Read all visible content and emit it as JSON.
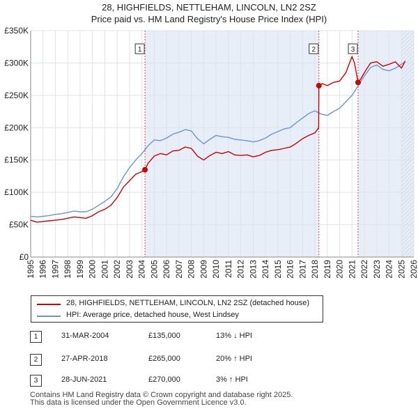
{
  "title_line1": "28, HIGHFIELDS, NETTLEHAM, LINCOLN, LN2 2SZ",
  "title_line2": "Price paid vs. HM Land Registry's House Price Index (HPI)",
  "colors": {
    "property": "#cc0000",
    "hpi": "#6a96cc",
    "shade": "#e8eef8",
    "vline": "#dd4444",
    "grid": "#dde3ec",
    "hatch": "#aab6c8"
  },
  "legend": {
    "property_label": "28, HIGHFIELDS, NETTLEHAM, LINCOLN, LN2 2SZ (detached house)",
    "hpi_label": "HPI: Average price, detached house, West Lindsey"
  },
  "sales": [
    {
      "num": "1",
      "date": "31-MAR-2004",
      "price": "£135,000",
      "hpi": "13% ↓ HPI"
    },
    {
      "num": "2",
      "date": "27-APR-2018",
      "price": "£265,000",
      "hpi": "20% ↑ HPI"
    },
    {
      "num": "3",
      "date": "28-JUN-2021",
      "price": "£270,000",
      "hpi": "3% ↑ HPI"
    }
  ],
  "footer": {
    "line1": "Contains HM Land Registry data © Crown copyright and database right 2025.",
    "line2": "This data is licensed under the Open Government Licence v3.0."
  },
  "chart_data": {
    "type": "line",
    "title": "Price paid vs. HM Land Registry's House Price Index (HPI)",
    "xlabel": "",
    "ylabel": "",
    "xlim": [
      1995,
      2026
    ],
    "ylim": [
      0,
      350000
    ],
    "y_ticks": [
      0,
      50000,
      100000,
      150000,
      200000,
      250000,
      300000,
      350000
    ],
    "y_tick_labels": [
      "£0",
      "£50K",
      "£100K",
      "£150K",
      "£200K",
      "£250K",
      "£300K",
      "£350K"
    ],
    "x_ticks": [
      1995,
      1996,
      1997,
      1998,
      1999,
      2000,
      2001,
      2002,
      2003,
      2004,
      2005,
      2006,
      2007,
      2008,
      2009,
      2010,
      2011,
      2012,
      2013,
      2014,
      2015,
      2016,
      2017,
      2018,
      2019,
      2020,
      2021,
      2022,
      2023,
      2024,
      2025,
      2026
    ],
    "x_tick_labels": [
      "1995",
      "1996",
      "1997",
      "1998",
      "1999",
      "2000",
      "2001",
      "2002",
      "2003",
      "2004",
      "2005",
      "2006",
      "2007",
      "2008",
      "2009",
      "2010",
      "2011",
      "2012",
      "2013",
      "2014",
      "2015",
      "2016",
      "2017",
      "2018",
      "2019",
      "2020",
      "2021",
      "2022",
      "2023",
      "2024",
      "2025",
      "2026"
    ],
    "grid": true,
    "forecast_hatch_from": 2025.0,
    "shaded_periods": [
      [
        2004.25,
        2018.32
      ],
      [
        2021.49,
        2026.0
      ]
    ],
    "series": [
      {
        "name": "28, HIGHFIELDS, NETTLEHAM, LINCOLN, LN2 2SZ (detached house)",
        "color": "#cc0000",
        "x": [
          1995.0,
          1995.5,
          1996.0,
          1996.5,
          1997.0,
          1997.5,
          1998.0,
          1998.5,
          1999.0,
          1999.5,
          2000.0,
          2000.5,
          2001.0,
          2001.5,
          2002.0,
          2002.5,
          2003.0,
          2003.5,
          2004.0,
          2004.25,
          2004.5,
          2005.0,
          2005.5,
          2006.0,
          2006.5,
          2007.0,
          2007.5,
          2008.0,
          2008.5,
          2009.0,
          2009.5,
          2010.0,
          2010.5,
          2011.0,
          2011.5,
          2012.0,
          2012.5,
          2013.0,
          2013.5,
          2014.0,
          2014.5,
          2015.0,
          2015.5,
          2016.0,
          2016.5,
          2017.0,
          2017.5,
          2018.0,
          2018.3,
          2018.32,
          2018.6,
          2019.0,
          2019.5,
          2020.0,
          2020.5,
          2021.0,
          2021.2,
          2021.49,
          2021.7,
          2022.0,
          2022.5,
          2023.0,
          2023.5,
          2024.0,
          2024.5,
          2025.0,
          2025.3
        ],
        "values": [
          57000,
          54000,
          55000,
          56000,
          57000,
          58000,
          60000,
          62000,
          61000,
          60000,
          64000,
          70000,
          74000,
          80000,
          92000,
          108000,
          118000,
          128000,
          132000,
          135000,
          145000,
          156000,
          160000,
          158000,
          164000,
          165000,
          170000,
          168000,
          156000,
          150000,
          157000,
          162000,
          160000,
          163000,
          158000,
          157000,
          158000,
          155000,
          157000,
          162000,
          165000,
          166000,
          168000,
          170000,
          176000,
          183000,
          188000,
          192000,
          200000,
          265000,
          268000,
          265000,
          270000,
          272000,
          285000,
          310000,
          300000,
          270000,
          275000,
          285000,
          300000,
          302000,
          295000,
          298000,
          302000,
          292000,
          303000
        ]
      },
      {
        "name": "HPI: Average price, detached house, West Lindsey",
        "color": "#6a96cc",
        "x": [
          1995.0,
          1995.5,
          1996.0,
          1996.5,
          1997.0,
          1997.5,
          1998.0,
          1998.5,
          1999.0,
          1999.5,
          2000.0,
          2000.5,
          2001.0,
          2001.5,
          2002.0,
          2002.5,
          2003.0,
          2003.5,
          2004.0,
          2004.5,
          2005.0,
          2005.5,
          2006.0,
          2006.5,
          2007.0,
          2007.5,
          2008.0,
          2008.5,
          2009.0,
          2009.5,
          2010.0,
          2010.5,
          2011.0,
          2011.5,
          2012.0,
          2012.5,
          2013.0,
          2013.5,
          2014.0,
          2014.5,
          2015.0,
          2015.5,
          2016.0,
          2016.5,
          2017.0,
          2017.5,
          2018.0,
          2018.5,
          2019.0,
          2019.5,
          2020.0,
          2020.5,
          2021.0,
          2021.5,
          2022.0,
          2022.5,
          2023.0,
          2023.5,
          2024.0,
          2024.5,
          2025.0,
          2025.3
        ],
        "values": [
          63000,
          62000,
          63000,
          64000,
          66000,
          67000,
          69000,
          71000,
          70000,
          70000,
          74000,
          80000,
          86000,
          93000,
          106000,
          124000,
          138000,
          150000,
          160000,
          172000,
          181000,
          180000,
          184000,
          190000,
          193000,
          197000,
          195000,
          183000,
          175000,
          182000,
          188000,
          186000,
          185000,
          182000,
          181000,
          180000,
          178000,
          180000,
          184000,
          190000,
          194000,
          198000,
          200000,
          208000,
          215000,
          222000,
          226000,
          221000,
          219000,
          225000,
          230000,
          240000,
          250000,
          265000,
          280000,
          293000,
          297000,
          290000,
          288000,
          292000,
          298000,
          302000
        ]
      }
    ],
    "sale_markers": [
      {
        "label": "1",
        "x": 2004.25,
        "value": 135000
      },
      {
        "label": "2",
        "x": 2018.32,
        "value": 265000
      },
      {
        "label": "3",
        "x": 2021.49,
        "value": 270000
      }
    ]
  }
}
